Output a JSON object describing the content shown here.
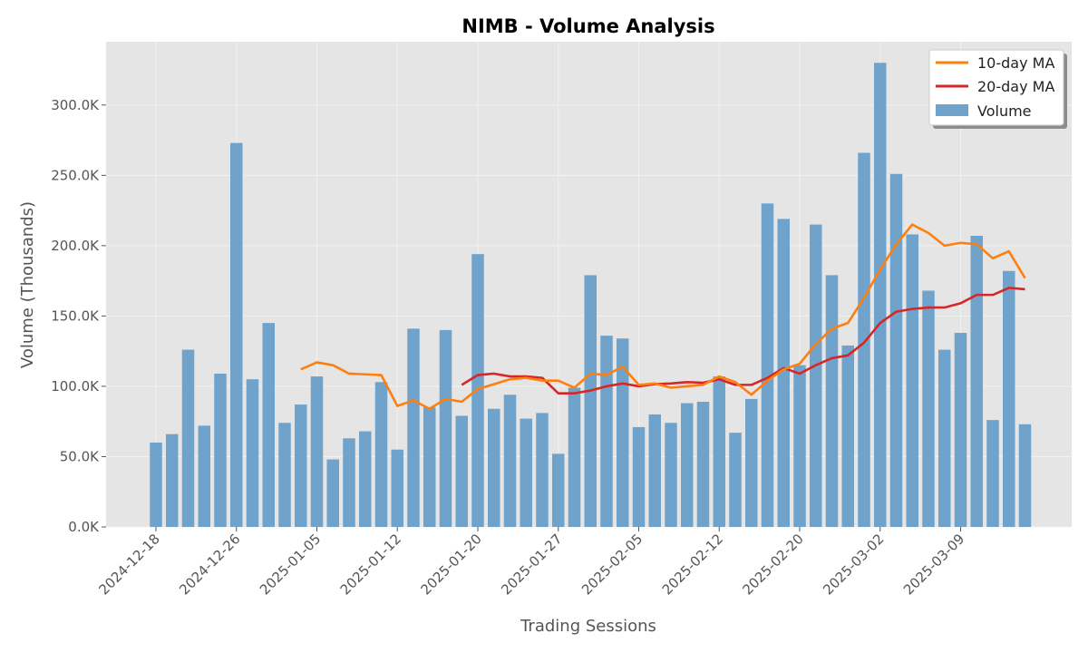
{
  "chart_data": {
    "type": "bar",
    "title": "NIMB - Volume Analysis",
    "xlabel": "Trading Sessions",
    "ylabel": "Volume (Thousands)",
    "ylim": [
      0,
      345
    ],
    "y_ticks": [
      0,
      50,
      100,
      150,
      200,
      250,
      300
    ],
    "y_tick_labels": [
      "0.0K",
      "50.0K",
      "100.0K",
      "150.0K",
      "200.0K",
      "250.0K",
      "300.0K"
    ],
    "x_tick_labels": [
      "2024-12-18",
      "2024-12-26",
      "2025-01-05",
      "2025-01-12",
      "2025-01-20",
      "2025-01-27",
      "2025-02-05",
      "2025-02-12",
      "2025-02-20",
      "2025-03-02",
      "2025-03-09"
    ],
    "x_tick_indices": [
      0,
      5,
      10,
      15,
      20,
      25,
      30,
      35,
      40,
      45,
      50
    ],
    "grid": true,
    "legend_position": "top-right",
    "colors": {
      "volume": "#6fa3cc",
      "ma10": "#ff7f0e",
      "ma20": "#d62728",
      "background": "#e5e5e5",
      "grid": "#f2f2f2"
    },
    "series": [
      {
        "name": "Volume",
        "kind": "bar",
        "values": [
          60,
          66,
          126,
          72,
          109,
          273,
          105,
          145,
          74,
          87,
          107,
          48,
          63,
          68,
          103,
          55,
          141,
          85,
          140,
          79,
          194,
          84,
          94,
          77,
          81,
          52,
          99,
          179,
          136,
          134,
          71,
          80,
          74,
          88,
          89,
          107,
          67,
          91,
          230,
          219,
          115,
          215,
          179,
          129,
          266,
          330,
          251,
          208,
          168,
          126,
          138,
          207,
          76,
          182,
          73
        ]
      },
      {
        "name": "10-day MA",
        "kind": "line",
        "values": [
          null,
          null,
          null,
          null,
          null,
          null,
          null,
          null,
          null,
          112,
          117,
          115,
          109,
          108.5,
          108,
          86,
          90,
          84,
          91,
          89,
          98,
          101.5,
          105,
          106,
          104,
          104,
          99,
          109,
          108,
          114,
          101,
          102,
          99,
          100,
          101,
          107,
          103,
          94,
          104,
          112,
          116,
          130,
          141,
          145,
          163,
          183,
          201,
          215,
          209,
          200,
          202,
          201,
          191,
          196,
          177
        ]
      },
      {
        "name": "20-day MA",
        "kind": "line",
        "values": [
          null,
          null,
          null,
          null,
          null,
          null,
          null,
          null,
          null,
          null,
          null,
          null,
          null,
          null,
          null,
          null,
          null,
          null,
          null,
          101,
          108,
          109,
          107,
          107,
          106,
          95,
          95,
          97,
          100,
          102,
          100,
          101.5,
          102,
          103,
          102.5,
          105,
          101,
          101,
          106,
          113,
          109,
          115,
          120,
          122,
          131,
          145,
          153,
          155,
          156,
          156,
          159,
          165,
          165,
          170,
          169
        ]
      }
    ]
  }
}
